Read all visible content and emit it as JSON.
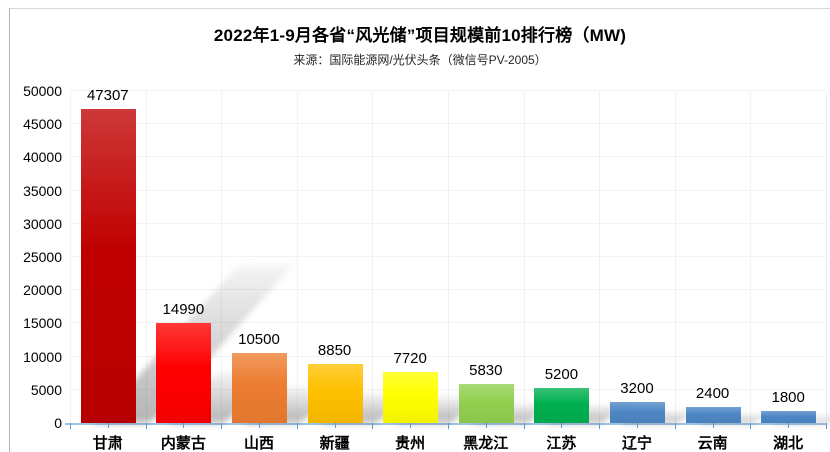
{
  "window": {
    "background": "#ffffff",
    "frame_top_color": "#d9d9d9",
    "frame_left_color": "#b3b3b3"
  },
  "chart_data": {
    "type": "bar",
    "title": "2022年1-9月各省“风光储”项目规模前10排行榜（MW)",
    "subtitle": "来源：国际能源网/光伏头条（微信号PV-2005）",
    "categories": [
      "甘肃",
      "内蒙古",
      "山西",
      "新疆",
      "贵州",
      "黑龙江",
      "江苏",
      "辽宁",
      "云南",
      "湖北"
    ],
    "values": [
      47307,
      14990,
      10500,
      8850,
      7720,
      5830,
      5200,
      3200,
      2400,
      1800
    ],
    "bar_colors": [
      "#C00000",
      "#FF0000",
      "#ED7D31",
      "#FFC000",
      "#FFFF00",
      "#92D050",
      "#00B050",
      "#4E87C5",
      "#4E87C5",
      "#4E87C5"
    ],
    "xlabel": "",
    "ylabel": "",
    "ylim": [
      0,
      50000
    ],
    "ytick_interval": 5000,
    "yticks": [
      0,
      5000,
      10000,
      15000,
      20000,
      25000,
      30000,
      35000,
      40000,
      45000,
      50000
    ],
    "grid": true,
    "legend": "none",
    "value_labels": true,
    "axis_line_color": "#9DC3E6",
    "tick_color": "#5B9BD5",
    "gridline_color": "#F2F2F2",
    "text_color": "#000000"
  }
}
